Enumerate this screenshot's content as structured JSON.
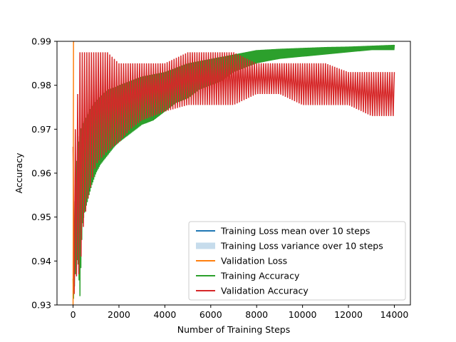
{
  "chart_data": {
    "type": "line",
    "title": "",
    "xlabel": "Number of Training Steps",
    "ylabel": "Accuracy",
    "xlim": [
      -700,
      14700
    ],
    "ylim": [
      0.93,
      0.99
    ],
    "x_ticks": [
      0,
      2000,
      4000,
      6000,
      8000,
      10000,
      12000,
      14000
    ],
    "y_ticks": [
      0.93,
      0.94,
      0.95,
      0.96,
      0.97,
      0.98,
      0.99
    ],
    "legend_position": "lower right",
    "grid": false,
    "colors": {
      "training_loss_mean": "#1f77b4",
      "training_loss_variance": "#c6dcec",
      "validation_loss": "#ff7f0e",
      "training_accuracy": "#2ca02c",
      "validation_accuracy": "#d62728"
    },
    "legend": [
      {
        "key": "training_loss_mean",
        "label": "Training Loss mean over 10 steps",
        "style": "line"
      },
      {
        "key": "training_loss_variance",
        "label": "Training Loss variance over 10 steps",
        "style": "patch"
      },
      {
        "key": "validation_loss",
        "label": "Validation Loss",
        "style": "line"
      },
      {
        "key": "training_accuracy",
        "label": "Training Accuracy",
        "style": "line"
      },
      {
        "key": "validation_accuracy",
        "label": "Validation Accuracy",
        "style": "line"
      }
    ],
    "series": [
      {
        "key": "validation_loss",
        "x": [
          0,
          10,
          20,
          30,
          40,
          50,
          60
        ],
        "y": [
          0.93,
          0.955,
          0.99,
          0.99,
          0.99,
          0.99,
          0.99
        ]
      },
      {
        "key": "training_accuracy",
        "band_x": [
          0,
          100,
          200,
          300,
          400,
          500,
          600,
          800,
          1000,
          1200,
          1500,
          1800,
          2000,
          2500,
          3000,
          3500,
          4000,
          4500,
          5000,
          5500,
          6000,
          6500,
          7000,
          7500,
          8000,
          9000,
          10000,
          11000,
          12000,
          13000,
          14000
        ],
        "band_high": [
          0.936,
          0.958,
          0.966,
          0.969,
          0.971,
          0.972,
          0.973,
          0.975,
          0.9765,
          0.9775,
          0.979,
          0.9795,
          0.98,
          0.981,
          0.982,
          0.9825,
          0.983,
          0.984,
          0.985,
          0.9855,
          0.986,
          0.9865,
          0.987,
          0.9875,
          0.988,
          0.9883,
          0.9885,
          0.9887,
          0.9888,
          0.989,
          0.9892
        ],
        "band_low": [
          0.93,
          0.937,
          0.941,
          0.932,
          0.948,
          0.951,
          0.953,
          0.957,
          0.96,
          0.962,
          0.964,
          0.966,
          0.967,
          0.969,
          0.971,
          0.972,
          0.974,
          0.976,
          0.977,
          0.979,
          0.98,
          0.981,
          0.983,
          0.984,
          0.985,
          0.986,
          0.9865,
          0.987,
          0.9875,
          0.988,
          0.988
        ]
      },
      {
        "key": "validation_accuracy",
        "band_x": [
          0,
          100,
          200,
          300,
          400,
          600,
          800,
          1000,
          1500,
          2000,
          2500,
          3000,
          4000,
          5000,
          6000,
          7000,
          8000,
          9000,
          10000,
          11000,
          12000,
          13000,
          14000
        ],
        "band_high": [
          0.966,
          0.97,
          0.978,
          0.9875,
          0.9875,
          0.9875,
          0.9875,
          0.9875,
          0.9875,
          0.985,
          0.985,
          0.985,
          0.985,
          0.9875,
          0.9875,
          0.9875,
          0.985,
          0.985,
          0.985,
          0.985,
          0.983,
          0.983,
          0.983
        ],
        "band_low": [
          0.93,
          0.935,
          0.938,
          0.936,
          0.946,
          0.953,
          0.958,
          0.962,
          0.965,
          0.967,
          0.97,
          0.972,
          0.974,
          0.9755,
          0.9755,
          0.9755,
          0.978,
          0.978,
          0.9755,
          0.9755,
          0.9755,
          0.973,
          0.973
        ]
      }
    ]
  }
}
